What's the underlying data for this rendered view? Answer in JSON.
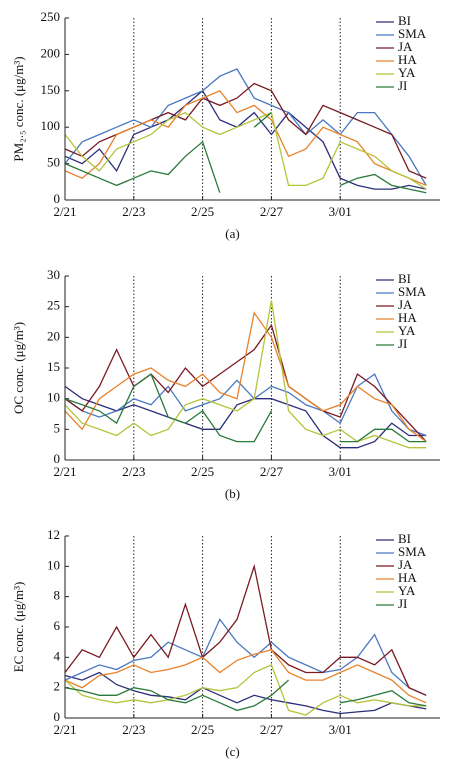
{
  "chart_data": [
    {
      "type": "line",
      "caption": "(a)",
      "ylabel": "PM₂.₅ conc. (μg/m³)",
      "x": [
        0,
        0.5,
        1,
        1.5,
        2,
        2.5,
        3,
        3.5,
        4,
        4.5,
        5,
        5.5,
        6,
        6.5,
        7,
        7.5,
        8,
        8.5,
        9,
        9.5,
        10,
        10.5
      ],
      "xlim": [
        0,
        10.9
      ],
      "xticks": [
        {
          "value": 0,
          "label": "2/21"
        },
        {
          "value": 2,
          "label": "2/23"
        },
        {
          "value": 4,
          "label": "2/25"
        },
        {
          "value": 6,
          "label": "2/27"
        },
        {
          "value": 8,
          "label": "3/01"
        }
      ],
      "xtick_dotted_lines": true,
      "ylim": [
        0,
        250
      ],
      "yticks": [
        0,
        50,
        100,
        150,
        200,
        250
      ],
      "legend": "upper right",
      "series": [
        {
          "name": "BI",
          "color": "#2b2f7a",
          "values": [
            60,
            50,
            70,
            40,
            90,
            100,
            110,
            130,
            150,
            110,
            100,
            120,
            90,
            120,
            100,
            80,
            30,
            20,
            15,
            15,
            20,
            15
          ]
        },
        {
          "name": "SMA",
          "color": "#4a78c0",
          "values": [
            50,
            80,
            90,
            100,
            110,
            100,
            130,
            140,
            150,
            170,
            180,
            140,
            130,
            120,
            90,
            110,
            90,
            120,
            120,
            90,
            60,
            20
          ]
        },
        {
          "name": "JA",
          "color": "#7a1a22",
          "values": [
            70,
            60,
            80,
            90,
            100,
            110,
            120,
            110,
            140,
            130,
            140,
            160,
            150,
            110,
            90,
            130,
            120,
            110,
            100,
            90,
            40,
            30
          ]
        },
        {
          "name": "HA",
          "color": "#e8822a",
          "values": [
            40,
            30,
            50,
            90,
            100,
            110,
            100,
            130,
            140,
            150,
            120,
            130,
            110,
            60,
            70,
            100,
            90,
            80,
            50,
            40,
            30,
            20
          ]
        },
        {
          "name": "YA",
          "color": "#b5c43a",
          "values": [
            90,
            60,
            40,
            70,
            80,
            90,
            110,
            120,
            100,
            90,
            100,
            110,
            120,
            20,
            20,
            30,
            80,
            70,
            60,
            40,
            30,
            15
          ]
        },
        {
          "name": "JI",
          "color": "#2a7a3a",
          "values": [
            50,
            40,
            30,
            20,
            30,
            40,
            35,
            60,
            80,
            10,
            null,
            100,
            120,
            null,
            null,
            null,
            20,
            30,
            35,
            20,
            15,
            10
          ]
        }
      ]
    },
    {
      "type": "line",
      "caption": "(b)",
      "ylabel": "OC conc. (μg/m³)",
      "x": [
        0,
        0.5,
        1,
        1.5,
        2,
        2.5,
        3,
        3.5,
        4,
        4.5,
        5,
        5.5,
        6,
        6.5,
        7,
        7.5,
        8,
        8.5,
        9,
        9.5,
        10,
        10.5
      ],
      "xlim": [
        0,
        10.9
      ],
      "xticks": [
        {
          "value": 0,
          "label": "2/21"
        },
        {
          "value": 2,
          "label": "2/23"
        },
        {
          "value": 4,
          "label": "2/25"
        },
        {
          "value": 6,
          "label": "2/27"
        },
        {
          "value": 8,
          "label": "3/01"
        }
      ],
      "xtick_dotted_lines": true,
      "ylim": [
        0,
        30
      ],
      "yticks": [
        0,
        5,
        10,
        15,
        20,
        25,
        30
      ],
      "legend": "upper right",
      "series": [
        {
          "name": "BI",
          "color": "#2b2f7a",
          "values": [
            12,
            10,
            9,
            8,
            9,
            8,
            7,
            6,
            5,
            5,
            9,
            10,
            10,
            9,
            8,
            4,
            2,
            2,
            3,
            6,
            4,
            4
          ]
        },
        {
          "name": "SMA",
          "color": "#4a78c0",
          "values": [
            10,
            8,
            7,
            8,
            10,
            9,
            12,
            8,
            9,
            10,
            13,
            10,
            12,
            11,
            9,
            8,
            6,
            12,
            14,
            8,
            5,
            4
          ]
        },
        {
          "name": "JA",
          "color": "#7a1a22",
          "values": [
            10,
            8,
            12,
            18,
            12,
            14,
            11,
            15,
            12,
            14,
            16,
            18,
            22,
            12,
            10,
            8,
            7,
            14,
            12,
            9,
            6,
            3
          ]
        },
        {
          "name": "HA",
          "color": "#e8822a",
          "values": [
            8,
            5,
            10,
            12,
            14,
            15,
            13,
            12,
            14,
            11,
            10,
            24,
            20,
            12,
            10,
            8,
            9,
            12,
            10,
            9,
            5,
            3
          ]
        },
        {
          "name": "YA",
          "color": "#b5c43a",
          "values": [
            9,
            6,
            5,
            4,
            6,
            4,
            5,
            9,
            10,
            9,
            8,
            10,
            26,
            8,
            5,
            4,
            5,
            3,
            4,
            3,
            2,
            2
          ]
        },
        {
          "name": "JI",
          "color": "#2a7a3a",
          "values": [
            10,
            9,
            8,
            6,
            12,
            14,
            7,
            6,
            8,
            4,
            3,
            3,
            8,
            null,
            null,
            null,
            3,
            3,
            5,
            5,
            3,
            3
          ]
        }
      ]
    },
    {
      "type": "line",
      "caption": "(c)",
      "ylabel": "EC conc. (μg/m³)",
      "x": [
        0,
        0.5,
        1,
        1.5,
        2,
        2.5,
        3,
        3.5,
        4,
        4.5,
        5,
        5.5,
        6,
        6.5,
        7,
        7.5,
        8,
        8.5,
        9,
        9.5,
        10,
        10.5
      ],
      "xlim": [
        0,
        10.9
      ],
      "xticks": [
        {
          "value": 0,
          "label": "2/21"
        },
        {
          "value": 2,
          "label": "2/23"
        },
        {
          "value": 4,
          "label": "2/25"
        },
        {
          "value": 6,
          "label": "2/27"
        },
        {
          "value": 8,
          "label": "3/01"
        }
      ],
      "xtick_dotted_lines": true,
      "ylim": [
        0,
        12
      ],
      "yticks": [
        0,
        2,
        4,
        6,
        8,
        10,
        12
      ],
      "legend": "upper right",
      "series": [
        {
          "name": "BI",
          "color": "#2b2f7a",
          "values": [
            2.8,
            2.5,
            3,
            2.2,
            1.8,
            1.5,
            1.4,
            1.2,
            2,
            1.5,
            1,
            1.5,
            1.2,
            1,
            0.8,
            0.5,
            0.3,
            0.4,
            0.5,
            1,
            0.8,
            0.6
          ]
        },
        {
          "name": "SMA",
          "color": "#4a78c0",
          "values": [
            2.5,
            3,
            3.5,
            3.2,
            3.8,
            4,
            5,
            4.5,
            4,
            6.5,
            5,
            4,
            5,
            4,
            3.5,
            3,
            3.2,
            4,
            5.5,
            3,
            2,
            1.5
          ]
        },
        {
          "name": "JA",
          "color": "#7a1a22",
          "values": [
            3,
            4.5,
            4,
            6,
            4,
            5.5,
            4,
            7.5,
            4,
            5,
            6.5,
            10,
            4.5,
            3.5,
            3,
            3,
            4,
            4,
            3.5,
            4.5,
            2,
            1.5
          ]
        },
        {
          "name": "HA",
          "color": "#e8822a",
          "values": [
            2.5,
            2,
            2.8,
            3,
            3.5,
            3,
            3.2,
            3.5,
            4,
            3,
            3.8,
            4.2,
            4.5,
            3,
            2.5,
            2.5,
            3,
            3.5,
            3,
            2.5,
            1.5,
            1
          ]
        },
        {
          "name": "YA",
          "color": "#b5c43a",
          "values": [
            2.5,
            1.5,
            1.2,
            1,
            1.2,
            1,
            1.2,
            1.5,
            2,
            1.8,
            2,
            3,
            3.5,
            0.5,
            0.2,
            1,
            1.5,
            1,
            1.2,
            1,
            0.8,
            0.8
          ]
        },
        {
          "name": "JI",
          "color": "#2a7a3a",
          "values": [
            2,
            1.8,
            1.5,
            1.5,
            2,
            1.8,
            1.2,
            1,
            1.5,
            1,
            0.5,
            0.8,
            1.5,
            2.5,
            null,
            null,
            1,
            1.2,
            1.5,
            1.8,
            1,
            0.8
          ]
        }
      ]
    }
  ]
}
